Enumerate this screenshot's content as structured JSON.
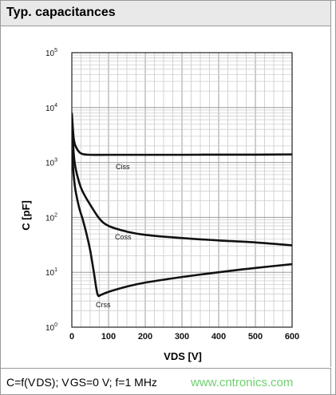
{
  "header": {
    "title": "Typ. capacitances"
  },
  "footer": {
    "condition": "C=f(V DS); V GS=0 V; f=1 MHz",
    "watermark": "www.cntronics.com"
  },
  "chart_data": {
    "type": "line",
    "title": "Typ. capacitances",
    "xlabel": "VDS [V]",
    "ylabel": "C [pF]",
    "xlim": [
      0,
      600
    ],
    "ylim": [
      1,
      100000
    ],
    "yscale": "log",
    "grid": true,
    "x_ticks": [
      "0",
      "100",
      "200",
      "300",
      "400",
      "500",
      "600"
    ],
    "y_ticks": [
      {
        "base": "10",
        "exp": "0"
      },
      {
        "base": "10",
        "exp": "1"
      },
      {
        "base": "10",
        "exp": "2"
      },
      {
        "base": "10",
        "exp": "3"
      },
      {
        "base": "10",
        "exp": "4"
      },
      {
        "base": "10",
        "exp": "5"
      }
    ],
    "series": [
      {
        "name": "Ciss",
        "x": [
          0,
          5,
          10,
          20,
          30,
          50,
          100,
          200,
          300,
          400,
          500,
          600
        ],
        "y": [
          8000,
          2800,
          2000,
          1550,
          1420,
          1380,
          1380,
          1380,
          1380,
          1390,
          1390,
          1400
        ]
      },
      {
        "name": "Coss",
        "x": [
          0,
          5,
          10,
          20,
          30,
          50,
          75,
          100,
          150,
          200,
          300,
          400,
          500,
          600
        ],
        "y": [
          7000,
          1500,
          800,
          430,
          290,
          170,
          95,
          70,
          55,
          48,
          42,
          38,
          35,
          31
        ]
      },
      {
        "name": "Crss",
        "x": [
          0,
          5,
          10,
          20,
          30,
          40,
          50,
          60,
          70,
          80,
          100,
          150,
          200,
          300,
          400,
          500,
          600
        ],
        "y": [
          1700,
          600,
          310,
          150,
          90,
          50,
          25,
          10,
          4,
          3.9,
          4.4,
          5.5,
          6.5,
          8.2,
          10,
          12,
          14
        ]
      }
    ],
    "annotations": [
      "Ciss",
      "Coss",
      "Crss"
    ]
  }
}
